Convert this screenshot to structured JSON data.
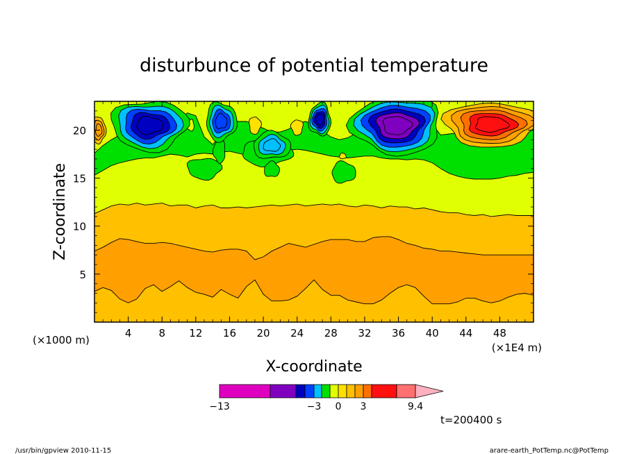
{
  "chart_data": {
    "type": "heatmap",
    "subtype": "filled-contour",
    "title": "disturbunce of potential temperature",
    "xlabel": "X-coordinate",
    "ylabel": "Z-coordinate",
    "x_scale_note": "(×1E4 m)",
    "y_scale_note": "(×1000 m)",
    "xlim": [
      0,
      52
    ],
    "ylim": [
      0,
      23
    ],
    "x_ticks": [
      4,
      8,
      12,
      16,
      20,
      24,
      28,
      32,
      36,
      40,
      44,
      48
    ],
    "x_tick_labels": [
      "4",
      "8",
      "12",
      "16",
      "20",
      "24",
      "28",
      "32",
      "36",
      "40",
      "44",
      "48"
    ],
    "y_ticks": [
      5,
      10,
      15,
      20
    ],
    "y_tick_labels": [
      "5",
      "10",
      "15",
      "20"
    ],
    "colorbar": {
      "labels": [
        {
          "text": "−13",
          "value": -13
        },
        {
          "text": "−3",
          "value": -3
        },
        {
          "text": "0",
          "value": 0
        },
        {
          "text": "3",
          "value": 3
        },
        {
          "text": "9.4",
          "value": 9.4
        }
      ],
      "bins": [
        {
          "lo": -13,
          "hi": -8,
          "color": "#e000c0"
        },
        {
          "lo": -8,
          "hi": -5,
          "color": "#8000c0"
        },
        {
          "lo": -5,
          "hi": -4,
          "color": "#0000c0"
        },
        {
          "lo": -4,
          "hi": -3,
          "color": "#0040ff"
        },
        {
          "lo": -3,
          "hi": -2,
          "color": "#00c0ff"
        },
        {
          "lo": -2,
          "hi": -1,
          "color": "#00e000"
        },
        {
          "lo": -1,
          "hi": 0,
          "color": "#e0ff00"
        },
        {
          "lo": 0,
          "hi": 1,
          "color": "#ffe000"
        },
        {
          "lo": 1,
          "hi": 2,
          "color": "#ffc000"
        },
        {
          "lo": 2,
          "hi": 3,
          "color": "#ffa000"
        },
        {
          "lo": 3,
          "hi": 4,
          "color": "#ff7000"
        },
        {
          "lo": 4,
          "hi": 7,
          "color": "#ff1010"
        },
        {
          "lo": 7,
          "hi": 9.4,
          "color": "#ff7070"
        }
      ],
      "overflow_color": "#ffb0c0"
    },
    "bands": [
      {
        "name": "orange",
        "color": "#ffa000",
        "z_low": [
          3.2,
          3.6,
          3.3,
          2.4,
          2.0,
          2.4,
          3.5,
          3.9,
          3.2,
          3.7,
          4.3,
          3.6,
          3.1,
          2.9,
          2.6,
          3.4,
          2.9,
          2.5,
          3.7,
          4.4,
          2.9,
          2.2,
          2.2,
          2.3,
          2.7,
          3.5,
          4.4,
          3.4,
          2.8,
          2.8,
          2.3,
          2.1,
          1.9,
          1.9,
          2.3,
          3.0,
          3.6,
          3.9,
          3.6,
          2.7,
          1.9,
          1.9,
          1.9,
          2.1,
          2.5,
          2.5,
          2.2,
          2.0,
          2.2,
          2.6,
          2.9,
          3.0,
          2.8
        ],
        "z_high": [
          7.4,
          7.8,
          8.3,
          8.7,
          8.6,
          8.4,
          8.2,
          8.2,
          8.3,
          8.2,
          8.0,
          7.8,
          7.6,
          7.4,
          7.3,
          7.5,
          7.6,
          7.6,
          7.4,
          6.5,
          6.8,
          7.4,
          7.8,
          8.2,
          8.0,
          7.8,
          8.1,
          8.4,
          8.6,
          8.6,
          8.6,
          8.4,
          8.4,
          8.8,
          8.9,
          8.9,
          8.6,
          8.2,
          8.0,
          7.7,
          7.6,
          7.4,
          7.4,
          7.3,
          7.2,
          7.1,
          7.0,
          7.0,
          7.0,
          7.0,
          7.0,
          7.0,
          7.0
        ]
      },
      {
        "name": "light-orange-top",
        "color": "#ffc000",
        "z": [
          11.3,
          11.7,
          12.1,
          12.3,
          12.2,
          12.4,
          12.2,
          12.3,
          12.4,
          12.1,
          12.2,
          12.2,
          11.9,
          12.1,
          12.2,
          11.9,
          11.9,
          12.0,
          11.9,
          12.0,
          12.1,
          12.2,
          12.1,
          12.2,
          12.3,
          12.1,
          12.2,
          12.3,
          12.2,
          12.3,
          12.1,
          12.0,
          12.2,
          12.1,
          11.9,
          12.1,
          12.0,
          12.0,
          11.8,
          11.9,
          11.7,
          11.5,
          11.4,
          11.4,
          11.2,
          11.1,
          11.2,
          11.0,
          11.1,
          11.2,
          11.1,
          11.1,
          11.1
        ]
      },
      {
        "name": "green-bottom",
        "color": "#00e000",
        "z": [
          15.3,
          15.8,
          16.3,
          16.6,
          16.8,
          17.0,
          17.1,
          17.1,
          17.3,
          17.5,
          17.4,
          17.2,
          17.5,
          17.6,
          17.5,
          17.7,
          17.8,
          17.6,
          17.4,
          17.3,
          17.3,
          17.4,
          17.6,
          17.9,
          18.0,
          17.9,
          17.7,
          17.5,
          17.3,
          17.2,
          17.1,
          17.2,
          17.3,
          17.3,
          17.1,
          17.0,
          17.0,
          16.9,
          17.0,
          16.9,
          16.6,
          16.0,
          15.5,
          15.2,
          15.0,
          14.9,
          14.9,
          14.9,
          15.0,
          15.2,
          15.3,
          15.5,
          15.6
        ]
      },
      {
        "name": "yellow-top",
        "color": "#e0ff00",
        "z": [
          17.6,
          18.4,
          19.0,
          19.5,
          19.6,
          19.6,
          19.5,
          19.5,
          19.7,
          20.4,
          21.0,
          21.8,
          21.5,
          19.3,
          18.5,
          19.5,
          20.7,
          20.9,
          20.9,
          20.5,
          20.2,
          19.8,
          19.8,
          20.1,
          20.7,
          20.9,
          20.6,
          19.9,
          19.3,
          19.0,
          19.2,
          19.7,
          20.7,
          21.5,
          22.6,
          22.6,
          22.6,
          22.6,
          22.6,
          21.8,
          20.6,
          19.5,
          19.6,
          19.7,
          20.0,
          20.6,
          21.1,
          21.2,
          21.1,
          21.0,
          20.6,
          20.4,
          20.2
        ]
      }
    ],
    "features": [
      {
        "type": "anomaly",
        "x": 6.5,
        "z": 20.5,
        "rx": 4.5,
        "rz": 2.6,
        "levels": [
          -1,
          -2,
          -3,
          -4
        ],
        "min": -4.5
      },
      {
        "type": "anomaly",
        "x": 15.0,
        "z": 20.9,
        "rx": 1.8,
        "rz": 2.0,
        "levels": [
          -1,
          -2,
          -3
        ],
        "min": -3.5
      },
      {
        "type": "anomaly",
        "x": 21.0,
        "z": 18.4,
        "rx": 2.2,
        "rz": 1.4,
        "levels": [
          -1,
          -2
        ],
        "min": -2.4
      },
      {
        "type": "anomaly",
        "x": 26.7,
        "z": 21.1,
        "rx": 1.3,
        "rz": 1.7,
        "levels": [
          -1,
          -2,
          -3,
          -4
        ],
        "min": -4.5
      },
      {
        "type": "anomaly",
        "x": 35.8,
        "z": 20.5,
        "rx": 5.3,
        "rz": 3.0,
        "levels": [
          -1,
          -2,
          -3,
          -4,
          -5
        ],
        "min": -6.5
      },
      {
        "type": "anomaly",
        "x": 47.0,
        "z": 20.6,
        "rx": 5.6,
        "rz": 2.3,
        "levels": [
          1,
          2,
          3,
          4
        ],
        "max": 6.5
      },
      {
        "type": "anomaly",
        "x": 0.5,
        "z": 20.0,
        "rx": 0.8,
        "rz": 1.4,
        "levels": [
          1,
          2
        ],
        "max": 2.5
      }
    ],
    "annotations": [
      {
        "text": "t=200400 s"
      }
    ]
  },
  "footer": {
    "left": "/usr/bin/gpview  2010-11-15",
    "right": "arare-earth_PotTemp.nc@PotTemp"
  }
}
